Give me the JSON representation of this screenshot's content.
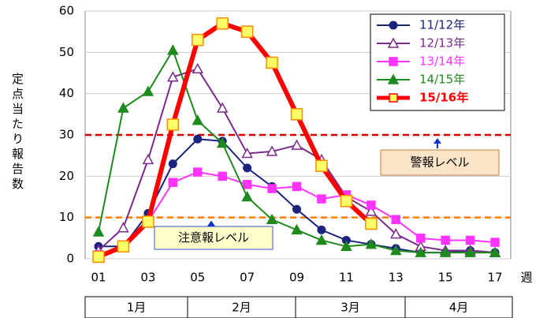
{
  "chart_data": {
    "type": "line",
    "y_label": "定点当たり報告数",
    "x_label": "週",
    "categories": [
      "01",
      null,
      "03",
      null,
      "05",
      null,
      "07",
      null,
      "09",
      null,
      "11",
      null,
      "13",
      null,
      "15",
      null,
      "17"
    ],
    "ylim": [
      0,
      60
    ],
    "yticks": [
      0,
      10,
      20,
      30,
      40,
      50,
      60
    ],
    "grid": true,
    "series": [
      {
        "name": "11/12年",
        "color": "#1a237e",
        "marker": "circle",
        "marker_fill": "#1a237e",
        "values": [
          3,
          3,
          11,
          23,
          29,
          28.5,
          22,
          17.5,
          12,
          7,
          4.5,
          3.5,
          2.5,
          1.5,
          1.5,
          2,
          1.5
        ]
      },
      {
        "name": "12/13年",
        "color": "#7b2a8c",
        "marker": "triangle",
        "marker_fill": "#ffffff",
        "values": [
          2,
          7.5,
          24,
          44,
          46,
          36.5,
          25.5,
          26,
          27.5,
          24,
          15,
          11.5,
          6,
          3,
          2,
          2,
          1.5
        ]
      },
      {
        "name": "13/14年",
        "color": "#ff33ff",
        "marker": "square",
        "marker_fill": "#ff33ff",
        "values": [
          1,
          3,
          9,
          18.5,
          21,
          20,
          18,
          17,
          17.5,
          14.5,
          15.5,
          13,
          9.5,
          5,
          4.5,
          4.5,
          4
        ]
      },
      {
        "name": "14/15年",
        "color": "#1e8a1e",
        "marker": "triangle",
        "marker_fill": "#1e8a1e",
        "values": [
          6.5,
          36.5,
          40.5,
          50.5,
          33.5,
          28,
          15,
          9.5,
          7,
          4.5,
          3,
          3.5,
          2,
          1.5,
          1.5,
          1.5,
          1.5
        ]
      },
      {
        "name": "15/16年",
        "color": "#ff0000",
        "marker": "square",
        "marker_fill": "#ffff66",
        "values": [
          0.5,
          3,
          9,
          32.5,
          53,
          57,
          55,
          47.5,
          35,
          22.5,
          14,
          8.5,
          null,
          null,
          null,
          null,
          null
        ]
      }
    ],
    "reference_lines": [
      {
        "value": 30,
        "label": "警報レベル",
        "color": "#d60000"
      },
      {
        "value": 10,
        "label": "注意報レベル",
        "color": "#ff7f00"
      }
    ],
    "months": [
      "1月",
      "2月",
      "3月",
      "4月"
    ]
  }
}
